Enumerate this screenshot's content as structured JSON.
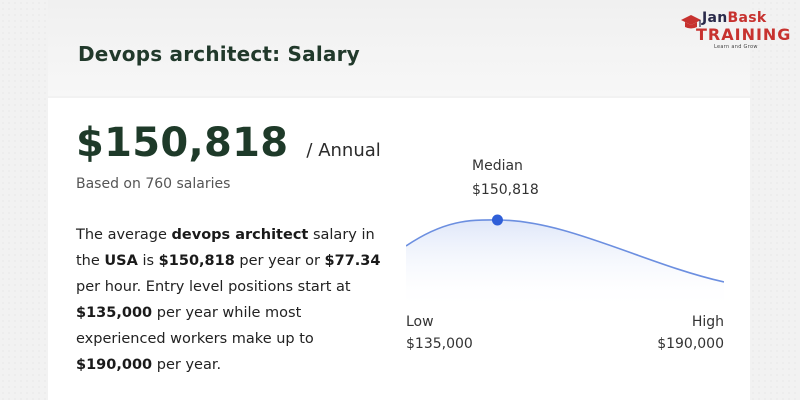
{
  "header": {
    "title": "Devops architect: Salary"
  },
  "logo": {
    "brand_part1": "Jan",
    "brand_part2": "Bask",
    "brand_line2": "TRAINING",
    "tagline": "Learn and Grow"
  },
  "salary": {
    "amount": "$150,818",
    "period": "/ Annual",
    "based_on": "Based on 760 salaries"
  },
  "summary": {
    "t1": "The average ",
    "b1": "devops architect",
    "t2": " salary in the ",
    "b2": "USA",
    "t3": " is ",
    "b3": "$150,818",
    "t4": " per year or ",
    "b4": "$77.34",
    "t5": " per hour. Entry level positions start at ",
    "b5": "$135,000",
    "t6": " per year while most experienced workers make up to ",
    "b6": "$190,000",
    "t7": " per year."
  },
  "chart_data": {
    "type": "area",
    "median_label": "Median",
    "median_value": "$150,818",
    "low_label": "Low",
    "low_value": "$135,000",
    "high_label": "High",
    "high_value": "$190,000",
    "low": 135000,
    "median": 150818,
    "high": 190000
  },
  "colors": {
    "curve": "#6c8fe0",
    "fill_top": "#e3eaf9",
    "marker": "#2f5fd8",
    "title": "#21392b",
    "brand_red": "#c7322f"
  }
}
